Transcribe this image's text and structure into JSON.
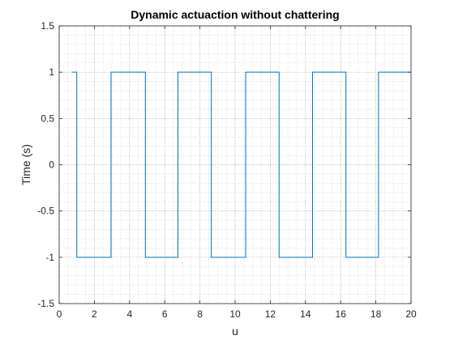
{
  "chart_data": {
    "type": "line",
    "title": "Dynamic actuaction without chattering",
    "xlabel": "u",
    "ylabel": "Time (s)",
    "xlim": [
      0,
      20
    ],
    "ylim": [
      -1.5,
      1.5
    ],
    "xticks": [
      "0",
      "2",
      "4",
      "6",
      "8",
      "10",
      "12",
      "14",
      "16",
      "18",
      "20"
    ],
    "yticks": [
      "1.5",
      "1",
      "0.5",
      "0",
      "-0.5",
      "-1",
      "-1.5"
    ],
    "grid": true,
    "grid_minor": true,
    "legend": "none",
    "series": [
      {
        "color": "#0072bd",
        "step": true,
        "x": [
          0.7,
          1.0,
          1.0,
          2.95,
          2.95,
          4.9,
          4.9,
          6.75,
          6.75,
          8.65,
          8.65,
          10.6,
          10.6,
          12.5,
          12.5,
          14.4,
          14.4,
          16.3,
          16.3,
          18.15,
          18.15,
          20.0
        ],
        "y": [
          1,
          1,
          -1,
          -1,
          1,
          1,
          -1,
          -1,
          1,
          1,
          -1,
          -1,
          1,
          1,
          -1,
          -1,
          1,
          1,
          -1,
          -1,
          1,
          1
        ]
      }
    ]
  }
}
